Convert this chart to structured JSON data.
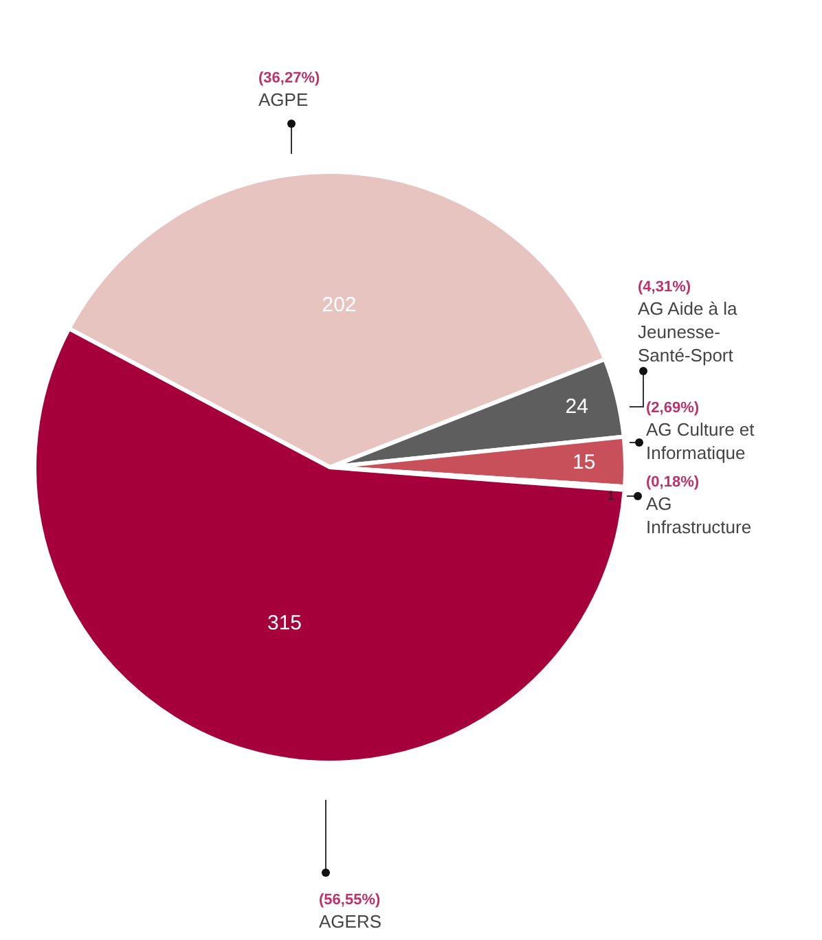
{
  "chart_data": {
    "type": "pie",
    "categories": [
      "AGPE",
      "AG Aide à la Jeunesse-Santé-Sport",
      "AG Culture et Informatique",
      "AG Infrastructure",
      "AGERS"
    ],
    "values": [
      202,
      24,
      15,
      1,
      315
    ],
    "colors": [
      "#e8c4c0",
      "#5e5e5e",
      "#c8505a",
      "#1e2e2a",
      "#a6003a"
    ],
    "data_labels": true,
    "annotations": [
      "(36,27%)",
      "(4,31%)",
      "(2,69%)",
      "(0,18%)",
      "(56,55%)"
    ],
    "legend": false
  }
}
